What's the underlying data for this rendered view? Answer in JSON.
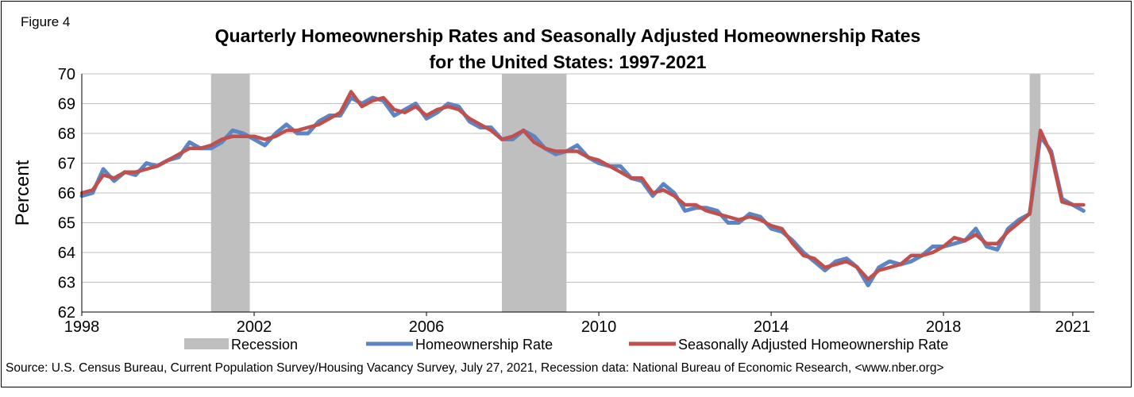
{
  "figure_label": "Figure 4",
  "title_line1": "Quarterly Homeownership Rates and Seasonally Adjusted Homeownership Rates",
  "title_line2": "for the United States: 1997-2021",
  "source": "Source: U.S. Census Bureau, Current Population Survey/Housing Vacancy Survey, July 27, 2021, Recession data: National Bureau of Economic Research, <www.nber.org>",
  "colors": {
    "homeownership": "#5b85c4",
    "seasonally_adjusted": "#c0504d",
    "recession": "#bfbfbf",
    "grid": "#bfbfbf"
  },
  "chart_data": {
    "type": "line",
    "ylabel": "Percent",
    "xlabel": "",
    "ylim": [
      62,
      70
    ],
    "yticks": [
      62,
      63,
      64,
      65,
      66,
      67,
      68,
      69,
      70
    ],
    "xlim": [
      1998.0,
      2021.5
    ],
    "xticks": [
      1998,
      2002,
      2006,
      2010,
      2014,
      2018,
      2021
    ],
    "grid": true,
    "legend_position": "bottom",
    "recessions": [
      {
        "name": "Recession",
        "start": 2001.0,
        "end": 2001.9
      },
      {
        "name": "Recession",
        "start": 2007.75,
        "end": 2009.25
      },
      {
        "name": "Recession",
        "start": 2020.0,
        "end": 2020.25
      }
    ],
    "legend": [
      "Recession",
      "Homeownership Rate",
      "Seasonally Adjusted Homeownership Rate"
    ],
    "x_start": 1998.0,
    "x_step": 0.25,
    "series": [
      {
        "name": "Homeownership Rate",
        "values": [
          65.9,
          66.0,
          66.8,
          66.4,
          66.7,
          66.6,
          67.0,
          66.9,
          67.1,
          67.2,
          67.7,
          67.5,
          67.5,
          67.7,
          68.1,
          68.0,
          67.8,
          67.6,
          68.0,
          68.3,
          68.0,
          68.0,
          68.4,
          68.6,
          68.6,
          69.2,
          69.0,
          69.2,
          69.1,
          68.6,
          68.8,
          69.0,
          68.5,
          68.7,
          69.0,
          68.9,
          68.4,
          68.2,
          68.2,
          67.8,
          67.8,
          68.1,
          67.9,
          67.5,
          67.3,
          67.4,
          67.6,
          67.2,
          67.0,
          66.9,
          66.9,
          66.5,
          66.4,
          65.9,
          66.3,
          66.0,
          65.4,
          65.5,
          65.5,
          65.4,
          65.0,
          65.0,
          65.3,
          65.2,
          64.8,
          64.7,
          64.4,
          64.0,
          63.7,
          63.4,
          63.7,
          63.8,
          63.5,
          62.9,
          63.5,
          63.7,
          63.6,
          63.7,
          63.9,
          64.2,
          64.2,
          64.3,
          64.4,
          64.8,
          64.2,
          64.1,
          64.8,
          65.1,
          65.3,
          67.9,
          67.4,
          65.8,
          65.6,
          65.4
        ]
      },
      {
        "name": "Seasonally Adjusted Homeownership Rate",
        "values": [
          66.0,
          66.1,
          66.6,
          66.5,
          66.7,
          66.7,
          66.8,
          66.9,
          67.1,
          67.3,
          67.5,
          67.5,
          67.6,
          67.8,
          67.9,
          67.9,
          67.9,
          67.8,
          67.9,
          68.1,
          68.1,
          68.2,
          68.3,
          68.5,
          68.7,
          69.4,
          68.9,
          69.1,
          69.2,
          68.8,
          68.7,
          68.9,
          68.6,
          68.8,
          68.9,
          68.8,
          68.5,
          68.3,
          68.1,
          67.8,
          67.9,
          68.1,
          67.7,
          67.5,
          67.4,
          67.4,
          67.4,
          67.2,
          67.1,
          66.9,
          66.7,
          66.5,
          66.5,
          66.0,
          66.1,
          65.9,
          65.6,
          65.6,
          65.4,
          65.3,
          65.2,
          65.1,
          65.2,
          65.1,
          64.9,
          64.8,
          64.3,
          63.9,
          63.8,
          63.5,
          63.6,
          63.7,
          63.5,
          63.1,
          63.4,
          63.5,
          63.6,
          63.9,
          63.9,
          64.0,
          64.2,
          64.5,
          64.4,
          64.6,
          64.3,
          64.3,
          64.7,
          65.0,
          65.3,
          68.1,
          67.3,
          65.7,
          65.6,
          65.6
        ]
      }
    ]
  }
}
